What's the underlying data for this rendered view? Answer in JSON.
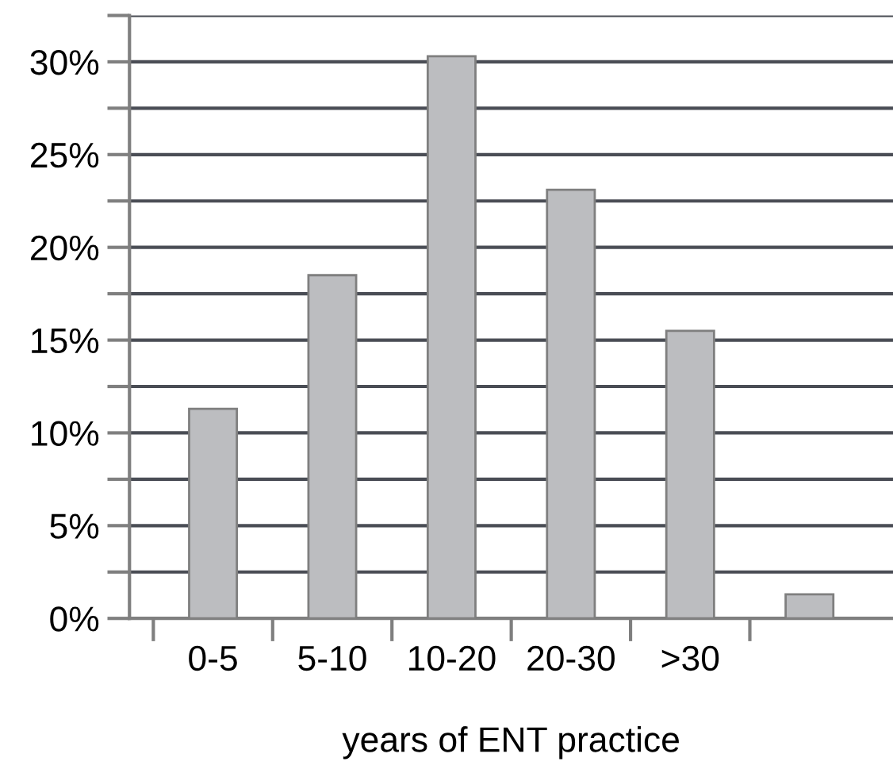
{
  "chart_data": {
    "type": "bar",
    "xlabel": "years of ENT practice",
    "categories": [
      "0-5",
      "5-10",
      "10-20",
      "20-30",
      ">30",
      null
    ],
    "values": [
      11.3,
      18.5,
      30.3,
      23.1,
      15.5,
      1.3
    ],
    "color": "#bcbdc0",
    "ylim": [
      0,
      32.5
    ],
    "yticks": [
      {
        "value": 0,
        "label": "0%"
      },
      {
        "value": 2.5,
        "label": null
      },
      {
        "value": 5,
        "label": "5%"
      },
      {
        "value": 7.5,
        "label": null
      },
      {
        "value": 10,
        "label": "10%"
      },
      {
        "value": 12.5,
        "label": null
      },
      {
        "value": 15,
        "label": "15%"
      },
      {
        "value": 17.5,
        "label": null
      },
      {
        "value": 20,
        "label": "20%"
      },
      {
        "value": 22.5,
        "label": null
      },
      {
        "value": 25,
        "label": "25%"
      },
      {
        "value": 27.5,
        "label": null
      },
      {
        "value": 30,
        "label": "30%"
      },
      {
        "value": 32.5,
        "label": null
      }
    ],
    "grid": "y"
  }
}
